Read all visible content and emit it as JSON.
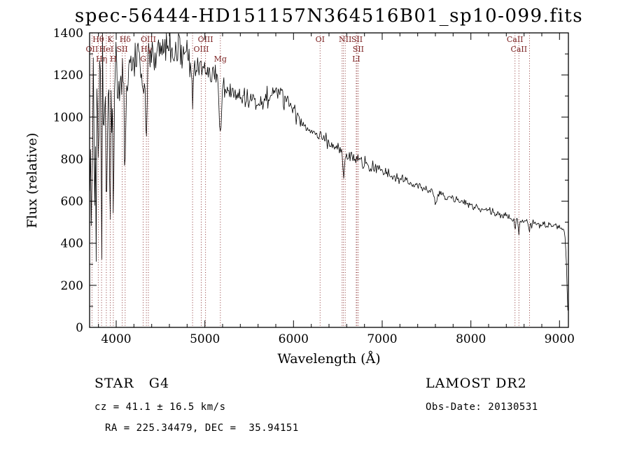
{
  "chart_data": {
    "type": "line",
    "title": "spec-56444-HD151157N364516B01_sp10-099.fits",
    "xlabel": "Wavelength (Å)",
    "ylabel": "Flux (relative)",
    "xlim": [
      3700,
      9100
    ],
    "ylim": [
      0,
      1400
    ],
    "xticks": [
      4000,
      5000,
      6000,
      7000,
      8000,
      9000
    ],
    "yticks": [
      0,
      200,
      400,
      600,
      800,
      1000,
      1200,
      1400
    ],
    "x_minor_step": 200,
    "y_minor_step": 100,
    "grid": false,
    "legend": false,
    "colors": {
      "spectrum": "#000000",
      "line_marker": "#8B3333",
      "line_label": "#7B2222",
      "axis": "#000000"
    },
    "spectrum": {
      "seed": 42,
      "sample_step": 8,
      "continuum": [
        [
          3700,
          880
        ],
        [
          3720,
          950
        ],
        [
          3760,
          1000
        ],
        [
          3800,
          1060
        ],
        [
          3850,
          1120
        ],
        [
          3900,
          1150
        ],
        [
          3950,
          1160
        ],
        [
          4000,
          1180
        ],
        [
          4050,
          1190
        ],
        [
          4100,
          1200
        ],
        [
          4150,
          1230
        ],
        [
          4200,
          1250
        ],
        [
          4300,
          1260
        ],
        [
          4350,
          1270
        ],
        [
          4400,
          1290
        ],
        [
          4450,
          1300
        ],
        [
          4500,
          1320
        ],
        [
          4550,
          1330
        ],
        [
          4600,
          1330
        ],
        [
          4650,
          1320
        ],
        [
          4700,
          1310
        ],
        [
          4750,
          1300
        ],
        [
          4800,
          1290
        ],
        [
          4850,
          1270
        ],
        [
          4900,
          1250
        ],
        [
          4950,
          1230
        ],
        [
          5000,
          1210
        ],
        [
          5050,
          1200
        ],
        [
          5100,
          1190
        ],
        [
          5150,
          1170
        ],
        [
          5200,
          1140
        ],
        [
          5250,
          1120
        ],
        [
          5300,
          1110
        ],
        [
          5350,
          1100
        ],
        [
          5400,
          1095
        ],
        [
          5450,
          1090
        ],
        [
          5500,
          1085
        ],
        [
          5600,
          1080
        ],
        [
          5700,
          1090
        ],
        [
          5750,
          1100
        ],
        [
          5800,
          1115
        ],
        [
          5850,
          1120
        ],
        [
          5900,
          1110
        ],
        [
          5950,
          1070
        ],
        [
          6000,
          1030
        ],
        [
          6050,
          1000
        ],
        [
          6100,
          975
        ],
        [
          6150,
          950
        ],
        [
          6200,
          935
        ],
        [
          6250,
          930
        ],
        [
          6300,
          920
        ],
        [
          6350,
          900
        ],
        [
          6400,
          880
        ],
        [
          6450,
          865
        ],
        [
          6500,
          850
        ],
        [
          6550,
          835
        ],
        [
          6600,
          820
        ],
        [
          6650,
          810
        ],
        [
          6700,
          800
        ],
        [
          6750,
          790
        ],
        [
          6800,
          780
        ],
        [
          6850,
          770
        ],
        [
          6900,
          760
        ],
        [
          6950,
          752
        ],
        [
          7000,
          745
        ],
        [
          7100,
          725
        ],
        [
          7200,
          705
        ],
        [
          7300,
          690
        ],
        [
          7400,
          672
        ],
        [
          7500,
          655
        ],
        [
          7600,
          640
        ],
        [
          7700,
          625
        ],
        [
          7800,
          610
        ],
        [
          7900,
          595
        ],
        [
          8000,
          580
        ],
        [
          8100,
          565
        ],
        [
          8200,
          552
        ],
        [
          8300,
          540
        ],
        [
          8400,
          528
        ],
        [
          8500,
          515
        ],
        [
          8600,
          505
        ],
        [
          8700,
          495
        ],
        [
          8800,
          487
        ],
        [
          8900,
          480
        ],
        [
          9000,
          474
        ],
        [
          9040,
          470
        ],
        [
          9060,
          450
        ],
        [
          9075,
          350
        ],
        [
          9085,
          180
        ],
        [
          9095,
          55
        ]
      ],
      "absorption_features": [
        [
          3798,
          550,
          6
        ],
        [
          3835,
          600,
          6
        ],
        [
          3889,
          620,
          6
        ],
        [
          3933,
          680,
          7
        ],
        [
          3968,
          600,
          7
        ],
        [
          4101,
          430,
          8
        ],
        [
          4304,
          120,
          10
        ],
        [
          4340,
          380,
          8
        ],
        [
          4861,
          230,
          8
        ],
        [
          5175,
          220,
          11
        ],
        [
          5893,
          70,
          6
        ],
        [
          6563,
          125,
          8
        ],
        [
          6870,
          35,
          12
        ],
        [
          7600,
          45,
          14
        ],
        [
          8498,
          45,
          6
        ],
        [
          8542,
          55,
          7
        ],
        [
          8662,
          45,
          6
        ]
      ],
      "noise_sigma": [
        [
          3700,
          250
        ],
        [
          3740,
          250
        ],
        [
          3780,
          210
        ],
        [
          3820,
          185
        ],
        [
          3860,
          165
        ],
        [
          3900,
          145
        ],
        [
          3950,
          125
        ],
        [
          4000,
          85
        ],
        [
          4050,
          72
        ],
        [
          4100,
          62
        ],
        [
          4200,
          58
        ],
        [
          4300,
          54
        ],
        [
          4400,
          52
        ],
        [
          4500,
          50
        ],
        [
          4600,
          47
        ],
        [
          4700,
          44
        ],
        [
          4800,
          41
        ],
        [
          4900,
          38
        ],
        [
          5000,
          33
        ],
        [
          5200,
          28
        ],
        [
          5400,
          25
        ],
        [
          5600,
          22
        ],
        [
          5800,
          22
        ],
        [
          6000,
          19
        ],
        [
          6200,
          17
        ],
        [
          6400,
          16
        ],
        [
          6600,
          14
        ],
        [
          6800,
          13
        ],
        [
          7000,
          12
        ],
        [
          7400,
          11
        ],
        [
          7800,
          10
        ],
        [
          8000,
          10
        ],
        [
          8300,
          9
        ],
        [
          8600,
          9
        ],
        [
          9000,
          8
        ],
        [
          9100,
          8
        ]
      ]
    },
    "spectral_lines": [
      {
        "label": "Hθ",
        "wavelength": 3798,
        "row": 1
      },
      {
        "label": "K",
        "wavelength": 3933,
        "row": 1
      },
      {
        "label": "Hδ",
        "wavelength": 4101,
        "row": 1
      },
      {
        "label": "OIII",
        "wavelength": 4363,
        "row": 1
      },
      {
        "label": "OIII",
        "wavelength": 5007,
        "row": 1
      },
      {
        "label": "OI",
        "wavelength": 6300,
        "row": 1
      },
      {
        "label": "NII",
        "wavelength": 6583,
        "row": 1
      },
      {
        "label": "SII",
        "wavelength": 6716,
        "row": 1
      },
      {
        "label": "CaII",
        "wavelength": 8498,
        "row": 1
      },
      {
        "label": "OII",
        "wavelength": 3727,
        "row": 2
      },
      {
        "label": "HeI",
        "wavelength": 3889,
        "row": 2
      },
      {
        "label": "SII",
        "wavelength": 4068,
        "row": 2
      },
      {
        "label": "Hγ",
        "wavelength": 4340,
        "row": 2
      },
      {
        "label": "OIII",
        "wavelength": 4959,
        "row": 2
      },
      {
        "label": "SII",
        "wavelength": 6731,
        "row": 2
      },
      {
        "label": "CaII",
        "wavelength": 8542,
        "row": 2
      },
      {
        "label": "Hη",
        "wavelength": 3835,
        "row": 3
      },
      {
        "label": "H",
        "wavelength": 3968,
        "row": 3
      },
      {
        "label": "G",
        "wavelength": 4304,
        "row": 3
      },
      {
        "label": "Mg",
        "wavelength": 5175,
        "row": 3
      },
      {
        "label": "LI",
        "wavelength": 6707,
        "row": 3
      },
      {
        "label": "",
        "wavelength": 4861,
        "row": 0
      },
      {
        "label": "",
        "wavelength": 6548,
        "row": 0
      },
      {
        "label": "",
        "wavelength": 6563,
        "row": 0
      },
      {
        "label": "",
        "wavelength": 8662,
        "row": 0
      }
    ]
  },
  "annotations": {
    "object_type": "STAR   G4",
    "survey": "LAMOST DR2",
    "cz": "cz = 41.1 ± 16.5 km/s",
    "obs_date": "Obs-Date: 20130531",
    "ra_dec": "RA = 225.34479, DEC =  35.94151"
  }
}
